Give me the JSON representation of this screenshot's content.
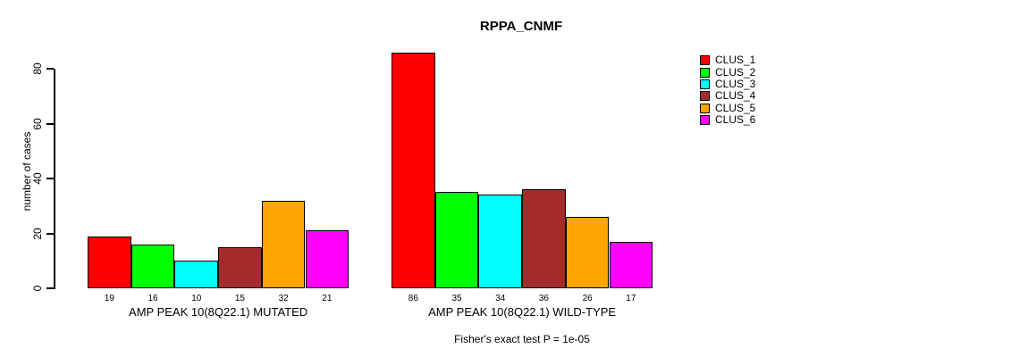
{
  "chart_data": {
    "type": "bar",
    "title": "RPPA_CNMF",
    "ylabel": "number of cases",
    "xlabel": "",
    "ylim": [
      0,
      80
    ],
    "yticks": [
      0,
      20,
      40,
      60,
      80
    ],
    "grid": false,
    "legend_position": "right",
    "legend": [
      "CLUS_1",
      "CLUS_2",
      "CLUS_3",
      "CLUS_4",
      "CLUS_5",
      "CLUS_6"
    ],
    "colors": [
      "#FF0000",
      "#00FF00",
      "#00FFFF",
      "#A52A2A",
      "#FFA500",
      "#FF00FF"
    ],
    "groups": [
      {
        "label": "AMP PEAK 10(8Q22.1) MUTATED",
        "values": [
          19,
          16,
          10,
          15,
          32,
          21
        ]
      },
      {
        "label": "AMP PEAK 10(8Q22.1) WILD-TYPE",
        "values": [
          86,
          35,
          34,
          36,
          26,
          17
        ]
      }
    ],
    "footnote": "Fisher's exact test P = 1e-05"
  }
}
